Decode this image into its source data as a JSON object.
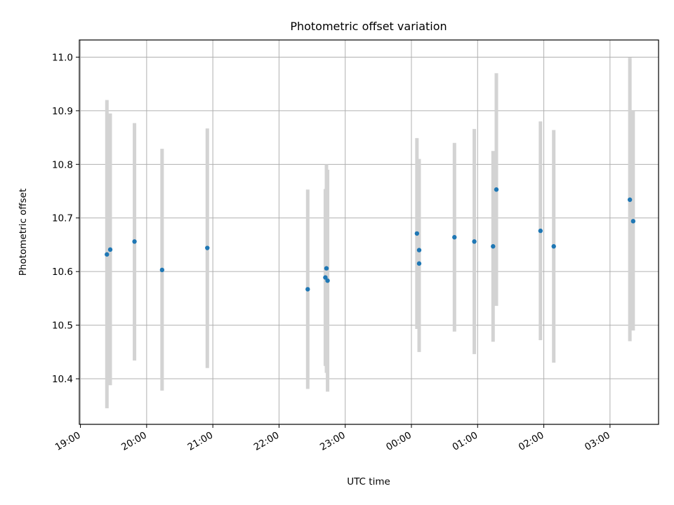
{
  "chart_data": {
    "type": "scatter",
    "title": "Photometric offset variation",
    "xlabel": "UTC time",
    "ylabel": "Photometric offset",
    "x_unit": "UTC time of night (hours past 19:00 continue past midnight)",
    "xlim": [
      "18:59",
      "03:44"
    ],
    "ylim": [
      10.315,
      11.032
    ],
    "grid": true,
    "x_tick_labels": [
      "19:00",
      "20:00",
      "21:00",
      "22:00",
      "23:00",
      "00:00",
      "01:00",
      "02:00",
      "03:00"
    ],
    "y_tick_labels": [
      "10.4",
      "10.5",
      "10.6",
      "10.7",
      "10.8",
      "10.9",
      "11.0"
    ],
    "y_ticks": [
      10.4,
      10.5,
      10.6,
      10.7,
      10.8,
      10.9,
      11.0
    ],
    "marker_color": "#1f77b4",
    "errorbar_color": "#d3d3d3",
    "points": [
      {
        "time": "19:24",
        "y": 10.632,
        "low": 10.345,
        "high": 10.92
      },
      {
        "time": "19:27",
        "y": 10.641,
        "low": 10.388,
        "high": 10.895
      },
      {
        "time": "19:49",
        "y": 10.656,
        "low": 10.434,
        "high": 10.877
      },
      {
        "time": "20:14",
        "y": 10.603,
        "low": 10.378,
        "high": 10.829
      },
      {
        "time": "20:55",
        "y": 10.644,
        "low": 10.42,
        "high": 10.867
      },
      {
        "time": "22:26",
        "y": 10.567,
        "low": 10.381,
        "high": 10.753
      },
      {
        "time": "22:42",
        "y": 10.589,
        "low": 10.424,
        "high": 10.754
      },
      {
        "time": "22:43",
        "y": 10.606,
        "low": 10.411,
        "high": 10.8
      },
      {
        "time": "22:44",
        "y": 10.583,
        "low": 10.376,
        "high": 10.79
      },
      {
        "time": "00:05",
        "y": 10.671,
        "low": 10.493,
        "high": 10.849
      },
      {
        "time": "00:07",
        "y": 10.615,
        "low": 10.45,
        "high": 10.78
      },
      {
        "time": "00:07",
        "y": 10.64,
        "low": 10.47,
        "high": 10.81
      },
      {
        "time": "00:39",
        "y": 10.664,
        "low": 10.488,
        "high": 10.84
      },
      {
        "time": "00:57",
        "y": 10.656,
        "low": 10.446,
        "high": 10.866
      },
      {
        "time": "01:14",
        "y": 10.647,
        "low": 10.469,
        "high": 10.825
      },
      {
        "time": "01:17",
        "y": 10.753,
        "low": 10.536,
        "high": 10.97
      },
      {
        "time": "01:57",
        "y": 10.676,
        "low": 10.472,
        "high": 10.88
      },
      {
        "time": "02:09",
        "y": 10.647,
        "low": 10.43,
        "high": 10.864
      },
      {
        "time": "03:18",
        "y": 10.734,
        "low": 10.47,
        "high": 10.999
      },
      {
        "time": "03:21",
        "y": 10.694,
        "low": 10.49,
        "high": 10.9
      }
    ]
  }
}
